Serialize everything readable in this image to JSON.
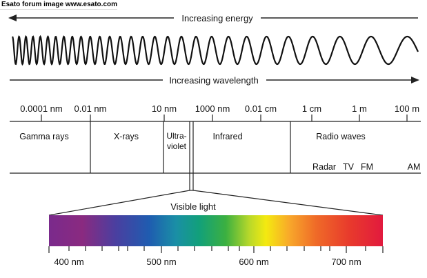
{
  "banner": "Esato forum image www.esato.com",
  "energy_arrow": {
    "label": "Increasing energy"
  },
  "wavelength_arrow": {
    "label": "Increasing wavelength"
  },
  "scale_ticks": [
    "0.0001 nm",
    "0.01 nm",
    "10 nm",
    "1000 nm",
    "0.01 cm",
    "1 cm",
    "1 m",
    "100 m"
  ],
  "bands": {
    "gamma": "Gamma rays",
    "xrays": "X-rays",
    "ultraviolet_line1": "Ultra-",
    "ultraviolet_line2": "violet",
    "infrared": "Infrared",
    "radio": "Radio waves"
  },
  "radio_subbands": [
    "Radar",
    "TV",
    "FM",
    "AM"
  ],
  "visible": {
    "title": "Visible light",
    "ticks": [
      "400 nm",
      "500 nm",
      "600 nm",
      "700 nm"
    ]
  },
  "colors": {
    "line": "#222222",
    "spectrum_stops": [
      "#7a2a8c",
      "#8a2a80",
      "#4a3fa0",
      "#1f5cb0",
      "#1a8fa6",
      "#12a07a",
      "#3cb040",
      "#b8d82a",
      "#f4ea10",
      "#f8a82a",
      "#ef6a28",
      "#e83a2c",
      "#e21a3e"
    ]
  }
}
